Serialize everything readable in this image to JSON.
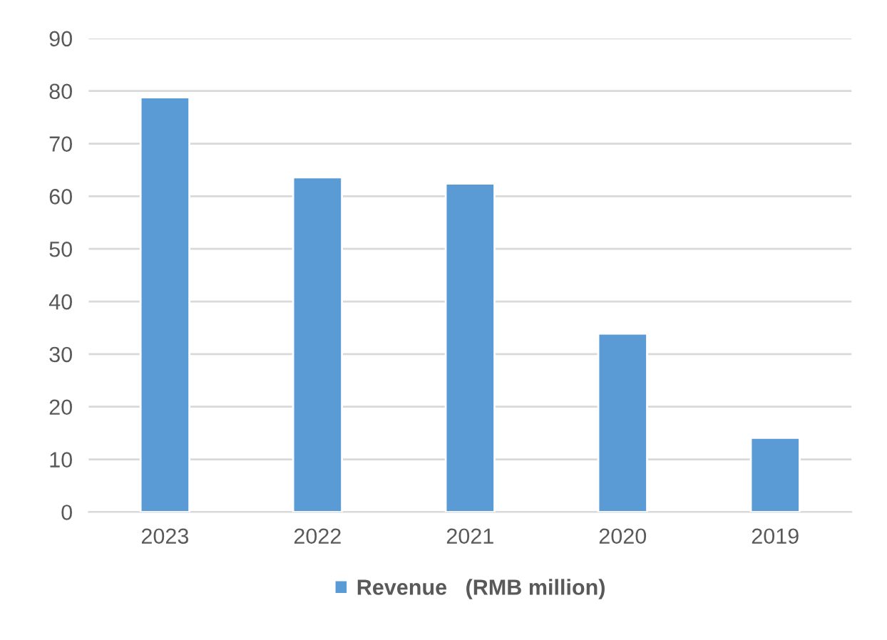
{
  "chart_data": {
    "type": "bar",
    "categories": [
      "2023",
      "2022",
      "2021",
      "2020",
      "2019"
    ],
    "series": [
      {
        "name": "Revenue   (RMB million)",
        "color": "#5b9bd5",
        "values": [
          78.8,
          63.6,
          62.4,
          33.9,
          14.1
        ]
      }
    ],
    "ylim": [
      0,
      90
    ],
    "yticks": [
      0,
      10,
      20,
      30,
      40,
      50,
      60,
      70,
      80,
      90
    ],
    "grid": "y",
    "legend": "bottom"
  }
}
